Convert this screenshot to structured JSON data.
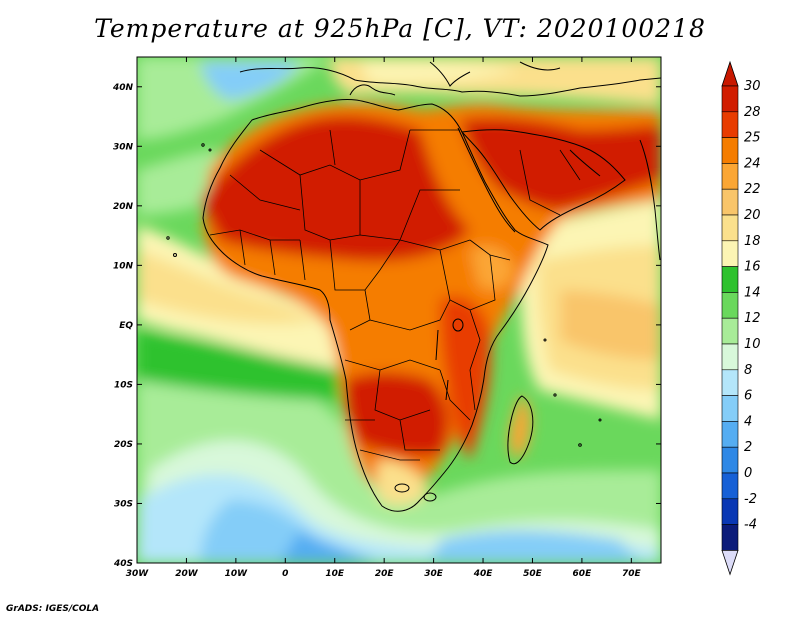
{
  "title": "Temperature at 925hPa [C], VT: 2020100218",
  "credit": "GrADS: IGES/COLA",
  "map": {
    "lon_range": [
      -30,
      76
    ],
    "lat_range": [
      -40,
      45
    ],
    "lon_ticks": [
      {
        "value": -30,
        "label": "30W"
      },
      {
        "value": -20,
        "label": "20W"
      },
      {
        "value": -10,
        "label": "10W"
      },
      {
        "value": 0,
        "label": "0"
      },
      {
        "value": 10,
        "label": "10E"
      },
      {
        "value": 20,
        "label": "20E"
      },
      {
        "value": 30,
        "label": "30E"
      },
      {
        "value": 40,
        "label": "40E"
      },
      {
        "value": 50,
        "label": "50E"
      },
      {
        "value": 60,
        "label": "60E"
      },
      {
        "value": 70,
        "label": "70E"
      }
    ],
    "lat_ticks": [
      {
        "value": 40,
        "label": "40N"
      },
      {
        "value": 30,
        "label": "30N"
      },
      {
        "value": 20,
        "label": "20N"
      },
      {
        "value": 10,
        "label": "10N"
      },
      {
        "value": 0,
        "label": "EQ"
      },
      {
        "value": -10,
        "label": "10S"
      },
      {
        "value": -20,
        "label": "20S"
      },
      {
        "value": -30,
        "label": "30S"
      },
      {
        "value": -40,
        "label": "40S"
      }
    ]
  },
  "colorbar": {
    "levels": [
      "30",
      "28",
      "25",
      "24",
      "22",
      "20",
      "18",
      "16",
      "14",
      "12",
      "10",
      "8",
      "6",
      "4",
      "2",
      "0",
      "-2",
      "-4"
    ],
    "colors": [
      "#d11d00",
      "#e83c00",
      "#f57d00",
      "#fba634",
      "#f9c56a",
      "#fbe08c",
      "#fcf5b4",
      "#2ec22e",
      "#6ad85c",
      "#a8ec98",
      "#d8f8da",
      "#b4e6fa",
      "#84cdf8",
      "#55adf2",
      "#2e88e6",
      "#1660d6",
      "#0a38b4",
      "#0c1c7a"
    ],
    "top_arrow_color": "#c81800",
    "bottom_arrow_color": "#dcdcf8"
  }
}
